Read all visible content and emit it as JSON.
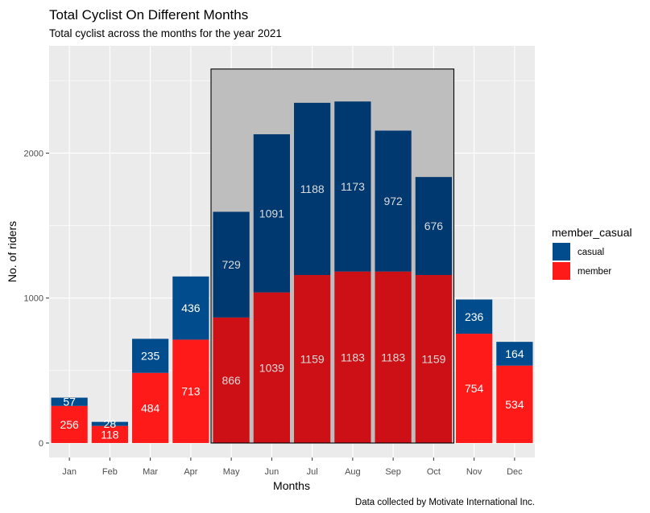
{
  "chart_data": {
    "type": "bar",
    "stacked": true,
    "title": "Total Cyclist On Different Months",
    "subtitle": "Total cyclist across the months for the year 2021",
    "xlabel": "Months",
    "ylabel": "No. of riders",
    "caption": "Data collected by Motivate International Inc.",
    "categories": [
      "Jan",
      "Feb",
      "Mar",
      "Apr",
      "May",
      "Jun",
      "Jul",
      "Aug",
      "Sep",
      "Oct",
      "Nov",
      "Dec"
    ],
    "series": [
      {
        "name": "member",
        "color": "#ff1a1a",
        "highlight_color": "#cc1015",
        "values": [
          256,
          118,
          484,
          713,
          866,
          1039,
          1159,
          1183,
          1183,
          1159,
          754,
          534
        ]
      },
      {
        "name": "casual",
        "color": "#004c8c",
        "highlight_color": "#003870",
        "values": [
          57,
          28,
          235,
          436,
          729,
          1091,
          1188,
          1173,
          972,
          676,
          236,
          164
        ]
      }
    ],
    "legend": {
      "title": "member_casual",
      "position": "right",
      "order": [
        "casual",
        "member"
      ]
    },
    "yticks": [
      0,
      1000,
      2000
    ],
    "ylim": [
      -100,
      2740
    ],
    "highlight": {
      "from": "May",
      "to": "Oct",
      "ymax": 2580,
      "fill": "#bebebe",
      "border": "#000000"
    },
    "label_colors": {
      "default": "#ffffff",
      "highlight": "#dcdcdc"
    },
    "grid": true,
    "panel_background": "#ebebeb"
  }
}
